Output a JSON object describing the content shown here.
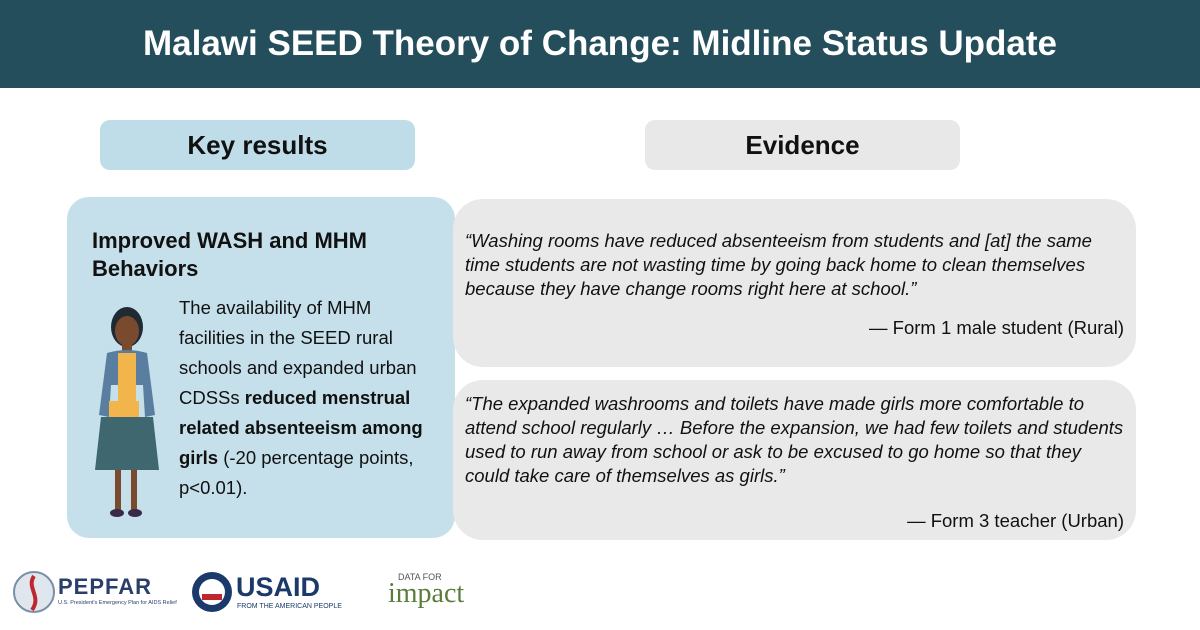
{
  "header": {
    "title": "Malawi SEED Theory of Change: Midline Status Update"
  },
  "columns": {
    "key_results": "Key results",
    "evidence": "Evidence"
  },
  "result": {
    "title": "Improved WASH and MHM Behaviors",
    "body": [
      "The availability of MHM facilities in the SEED rural schools and expanded urban CDSSs ",
      "reduced menstrual related absenteeism among girls",
      " (-20 percentage points, p<0.01)."
    ]
  },
  "quotes": [
    {
      "text": "“Washing rooms have reduced absenteeism from students and [at] the same time students are not wasting time by going back home to clean themselves because they have change rooms right here at school.”",
      "attribution": "— Form 1 male student (Rural)"
    },
    {
      "text": "“The expanded washrooms and toilets have made girls more comfortable to attend school regularly … Before the expansion, we had few toilets and students used to run away from school or ask to be excused to go home so that they could take care of themselves as girls.”",
      "attribution": "— Form 3 teacher (Urban)"
    }
  ],
  "logos": {
    "pepfar": "PEPFAR",
    "pepfar_sub": "U.S. President's Emergency Plan for AIDS Relief",
    "usaid": "USAID",
    "usaid_sub": "FROM THE AMERICAN PEOPLE",
    "d4i_top": "DATA FOR",
    "d4i_main": "impact"
  }
}
